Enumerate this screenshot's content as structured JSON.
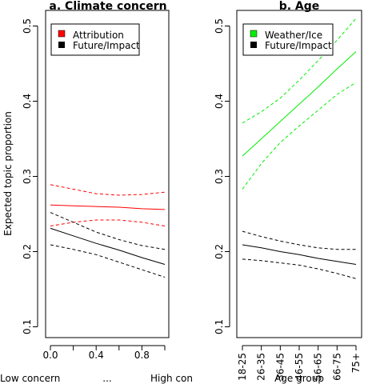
{
  "ylabel": "Expected topic proportion",
  "chart_data": [
    {
      "type": "line",
      "title": "a. Climate concern",
      "xlabel": "",
      "ylabel": "Expected topic proportion",
      "xlim": [
        0,
        1
      ],
      "ylim": [
        0.1,
        0.5
      ],
      "x_ticks": [
        "0.0",
        "0.4",
        "0.8"
      ],
      "y_ticks": [
        "0.1",
        "0.2",
        "0.3",
        "0.4",
        "0.5"
      ],
      "below_axis_labels": [
        "Low concern",
        "...",
        "High con"
      ],
      "legend": {
        "position": "top-left"
      },
      "series": [
        {
          "name": "Attribution",
          "color": "#ff0000",
          "x": [
            0,
            0.2,
            0.4,
            0.6,
            0.8,
            1.0
          ],
          "mean": [
            0.262,
            0.261,
            0.26,
            0.259,
            0.257,
            0.256
          ],
          "lower": [
            0.234,
            0.239,
            0.242,
            0.242,
            0.239,
            0.234
          ],
          "upper": [
            0.289,
            0.283,
            0.277,
            0.275,
            0.276,
            0.279
          ]
        },
        {
          "name": "Future/Impact",
          "color": "#000000",
          "x": [
            0,
            0.2,
            0.4,
            0.6,
            0.8,
            1.0
          ],
          "mean": [
            0.231,
            0.221,
            0.211,
            0.202,
            0.192,
            0.183
          ],
          "lower": [
            0.209,
            0.203,
            0.196,
            0.186,
            0.176,
            0.166
          ],
          "upper": [
            0.252,
            0.239,
            0.226,
            0.216,
            0.208,
            0.203
          ]
        }
      ]
    },
    {
      "type": "line",
      "title": "b. Age",
      "xlabel": "Age group",
      "ylabel": "",
      "categories": [
        "18-25",
        "26-35",
        "36-45",
        "46-55",
        "56-65",
        "66-75",
        "75+"
      ],
      "ylim": [
        0.1,
        0.5
      ],
      "y_ticks": [
        "0.1",
        "0.2",
        "0.3",
        "0.4",
        "0.5"
      ],
      "legend": {
        "position": "top-left"
      },
      "series": [
        {
          "name": "Weather/Ice",
          "color": "#00ee00",
          "mean": [
            0.327,
            0.35,
            0.373,
            0.396,
            0.419,
            0.443,
            0.466
          ],
          "lower": [
            0.283,
            0.317,
            0.345,
            0.367,
            0.388,
            0.409,
            0.425
          ],
          "upper": [
            0.371,
            0.386,
            0.404,
            0.428,
            0.454,
            0.481,
            0.51
          ]
        },
        {
          "name": "Future/Impact",
          "color": "#000000",
          "mean": [
            0.209,
            0.205,
            0.2,
            0.196,
            0.191,
            0.187,
            0.183
          ],
          "lower": [
            0.19,
            0.188,
            0.185,
            0.182,
            0.177,
            0.171,
            0.164
          ],
          "upper": [
            0.227,
            0.22,
            0.214,
            0.209,
            0.205,
            0.203,
            0.203
          ]
        }
      ]
    }
  ]
}
